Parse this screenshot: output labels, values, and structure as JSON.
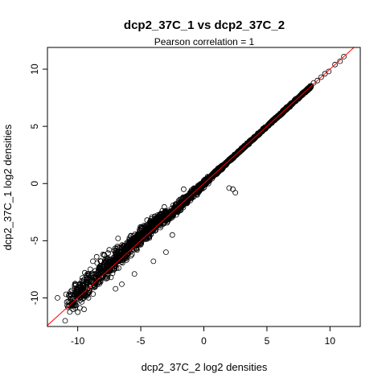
{
  "chart_data": {
    "type": "scatter",
    "title": "dcp2_37C_1 vs dcp2_37C_2",
    "subtitle": "Pearson correlation =  1",
    "xlabel": "dcp2_37C_2 log2 densities",
    "ylabel": "dcp2_37C_1 log2 densities",
    "xlim": [
      -12.4,
      12.4
    ],
    "ylim": [
      -12.5,
      11.9
    ],
    "x_ticks": [
      -10,
      -5,
      0,
      5,
      10
    ],
    "y_ticks": [
      -10,
      -5,
      0,
      5,
      10
    ],
    "grid": false,
    "legend": "none",
    "reference_line": {
      "type": "identity",
      "slope": 1,
      "intercept": 0,
      "color": "#ff0000"
    },
    "point_style": {
      "shape": "open-circle",
      "color": "#000000"
    },
    "points_description_note": "",
    "points": [
      [
        11.1,
        11.1
      ],
      [
        10.8,
        10.7
      ],
      [
        10.4,
        10.4
      ],
      [
        9.9,
        9.8
      ],
      [
        9.6,
        9.6
      ],
      [
        9.3,
        9.3
      ],
      [
        9.0,
        9.0
      ],
      [
        8.7,
        8.8
      ],
      [
        8.4,
        8.3
      ],
      [
        8.1,
        8.1
      ],
      [
        7.8,
        7.8
      ],
      [
        7.5,
        7.4
      ],
      [
        -1.6,
        -0.5
      ],
      [
        2.0,
        -0.4
      ],
      [
        2.3,
        -0.5
      ],
      [
        2.5,
        -0.8
      ],
      [
        -11.6,
        -10.0
      ],
      [
        -11.0,
        -12.0
      ],
      [
        -10.7,
        -10.7
      ],
      [
        -10.2,
        -9.5
      ],
      [
        -10.0,
        -9.8
      ],
      [
        -9.8,
        -10.2
      ],
      [
        -9.5,
        -11.0
      ],
      [
        -9.0,
        -7.5
      ],
      [
        -8.8,
        -6.8
      ],
      [
        -8.5,
        -6.4
      ],
      [
        -8.0,
        -6.2
      ],
      [
        -7.5,
        -5.8
      ],
      [
        -9.5,
        -8.4
      ],
      [
        -7.0,
        -9.2
      ],
      [
        -6.5,
        -8.8
      ],
      [
        -6.8,
        -4.8
      ],
      [
        -5.8,
        -4.6
      ],
      [
        -5.0,
        -3.9
      ],
      [
        -4.5,
        -3.2
      ],
      [
        -3.0,
        -6.0
      ],
      [
        -2.5,
        -4.5
      ],
      [
        -4.0,
        -6.8
      ],
      [
        -5.5,
        -7.9
      ],
      [
        -3.5,
        -2.7
      ],
      [
        -2.0,
        -1.5
      ]
    ]
  }
}
